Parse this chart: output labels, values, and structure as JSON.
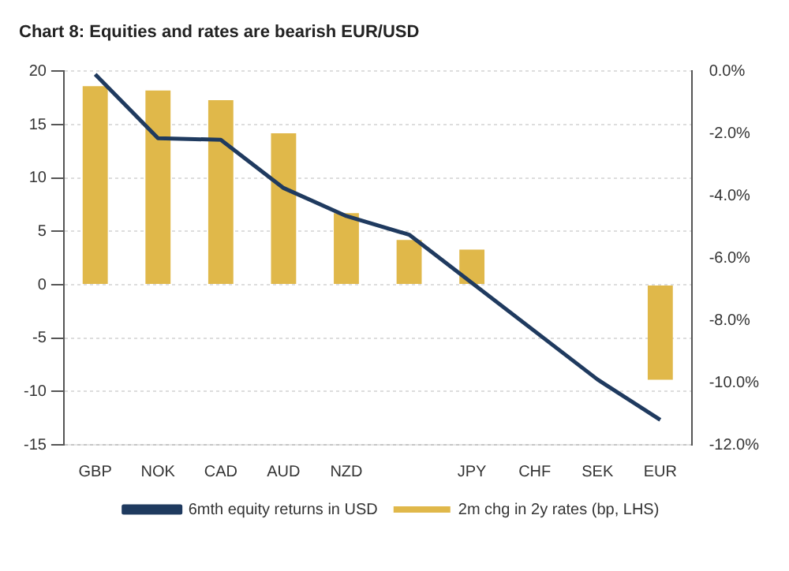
{
  "chart_data": {
    "type": "bar",
    "title": "Chart 8: Equities and rates are bearish EUR/USD",
    "categories": [
      "GBP",
      "NOK",
      "CAD",
      "AUD",
      "NZD",
      null,
      "JPY",
      "CHF",
      "SEK",
      "EUR"
    ],
    "series": [
      {
        "name": "2m chg in 2y rates (bp, LHS)",
        "color": "#e0b84a",
        "values": [
          18.6,
          18.2,
          17.3,
          14.2,
          6.7,
          4.2,
          3.3,
          null,
          null,
          -8.9
        ]
      },
      {
        "name": "6mth equity returns in USD",
        "type": "line",
        "axis": "y2",
        "color": "#1f3a5f",
        "values": [
          -0.1,
          -2.15,
          -2.2,
          -3.75,
          -4.65,
          -5.25,
          null,
          null,
          -9.9,
          -11.2
        ]
      }
    ],
    "ylim": [
      -15,
      20
    ],
    "yticks": [
      -15,
      -10,
      -5,
      0,
      5,
      10,
      15,
      20
    ],
    "y2lim": [
      -12,
      0
    ],
    "y2ticks": [
      {
        "value": -12,
        "label": "-12.0%"
      },
      {
        "value": -10,
        "label": "-10.0%"
      },
      {
        "value": -8,
        "label": "-8.0%"
      },
      {
        "value": -6,
        "label": "-6.0%"
      },
      {
        "value": -4,
        "label": "-4.0%"
      },
      {
        "value": -2,
        "label": "-2.0%"
      },
      {
        "value": 0,
        "label": "0.0%"
      }
    ],
    "grid": "y",
    "legend": "bottom"
  }
}
